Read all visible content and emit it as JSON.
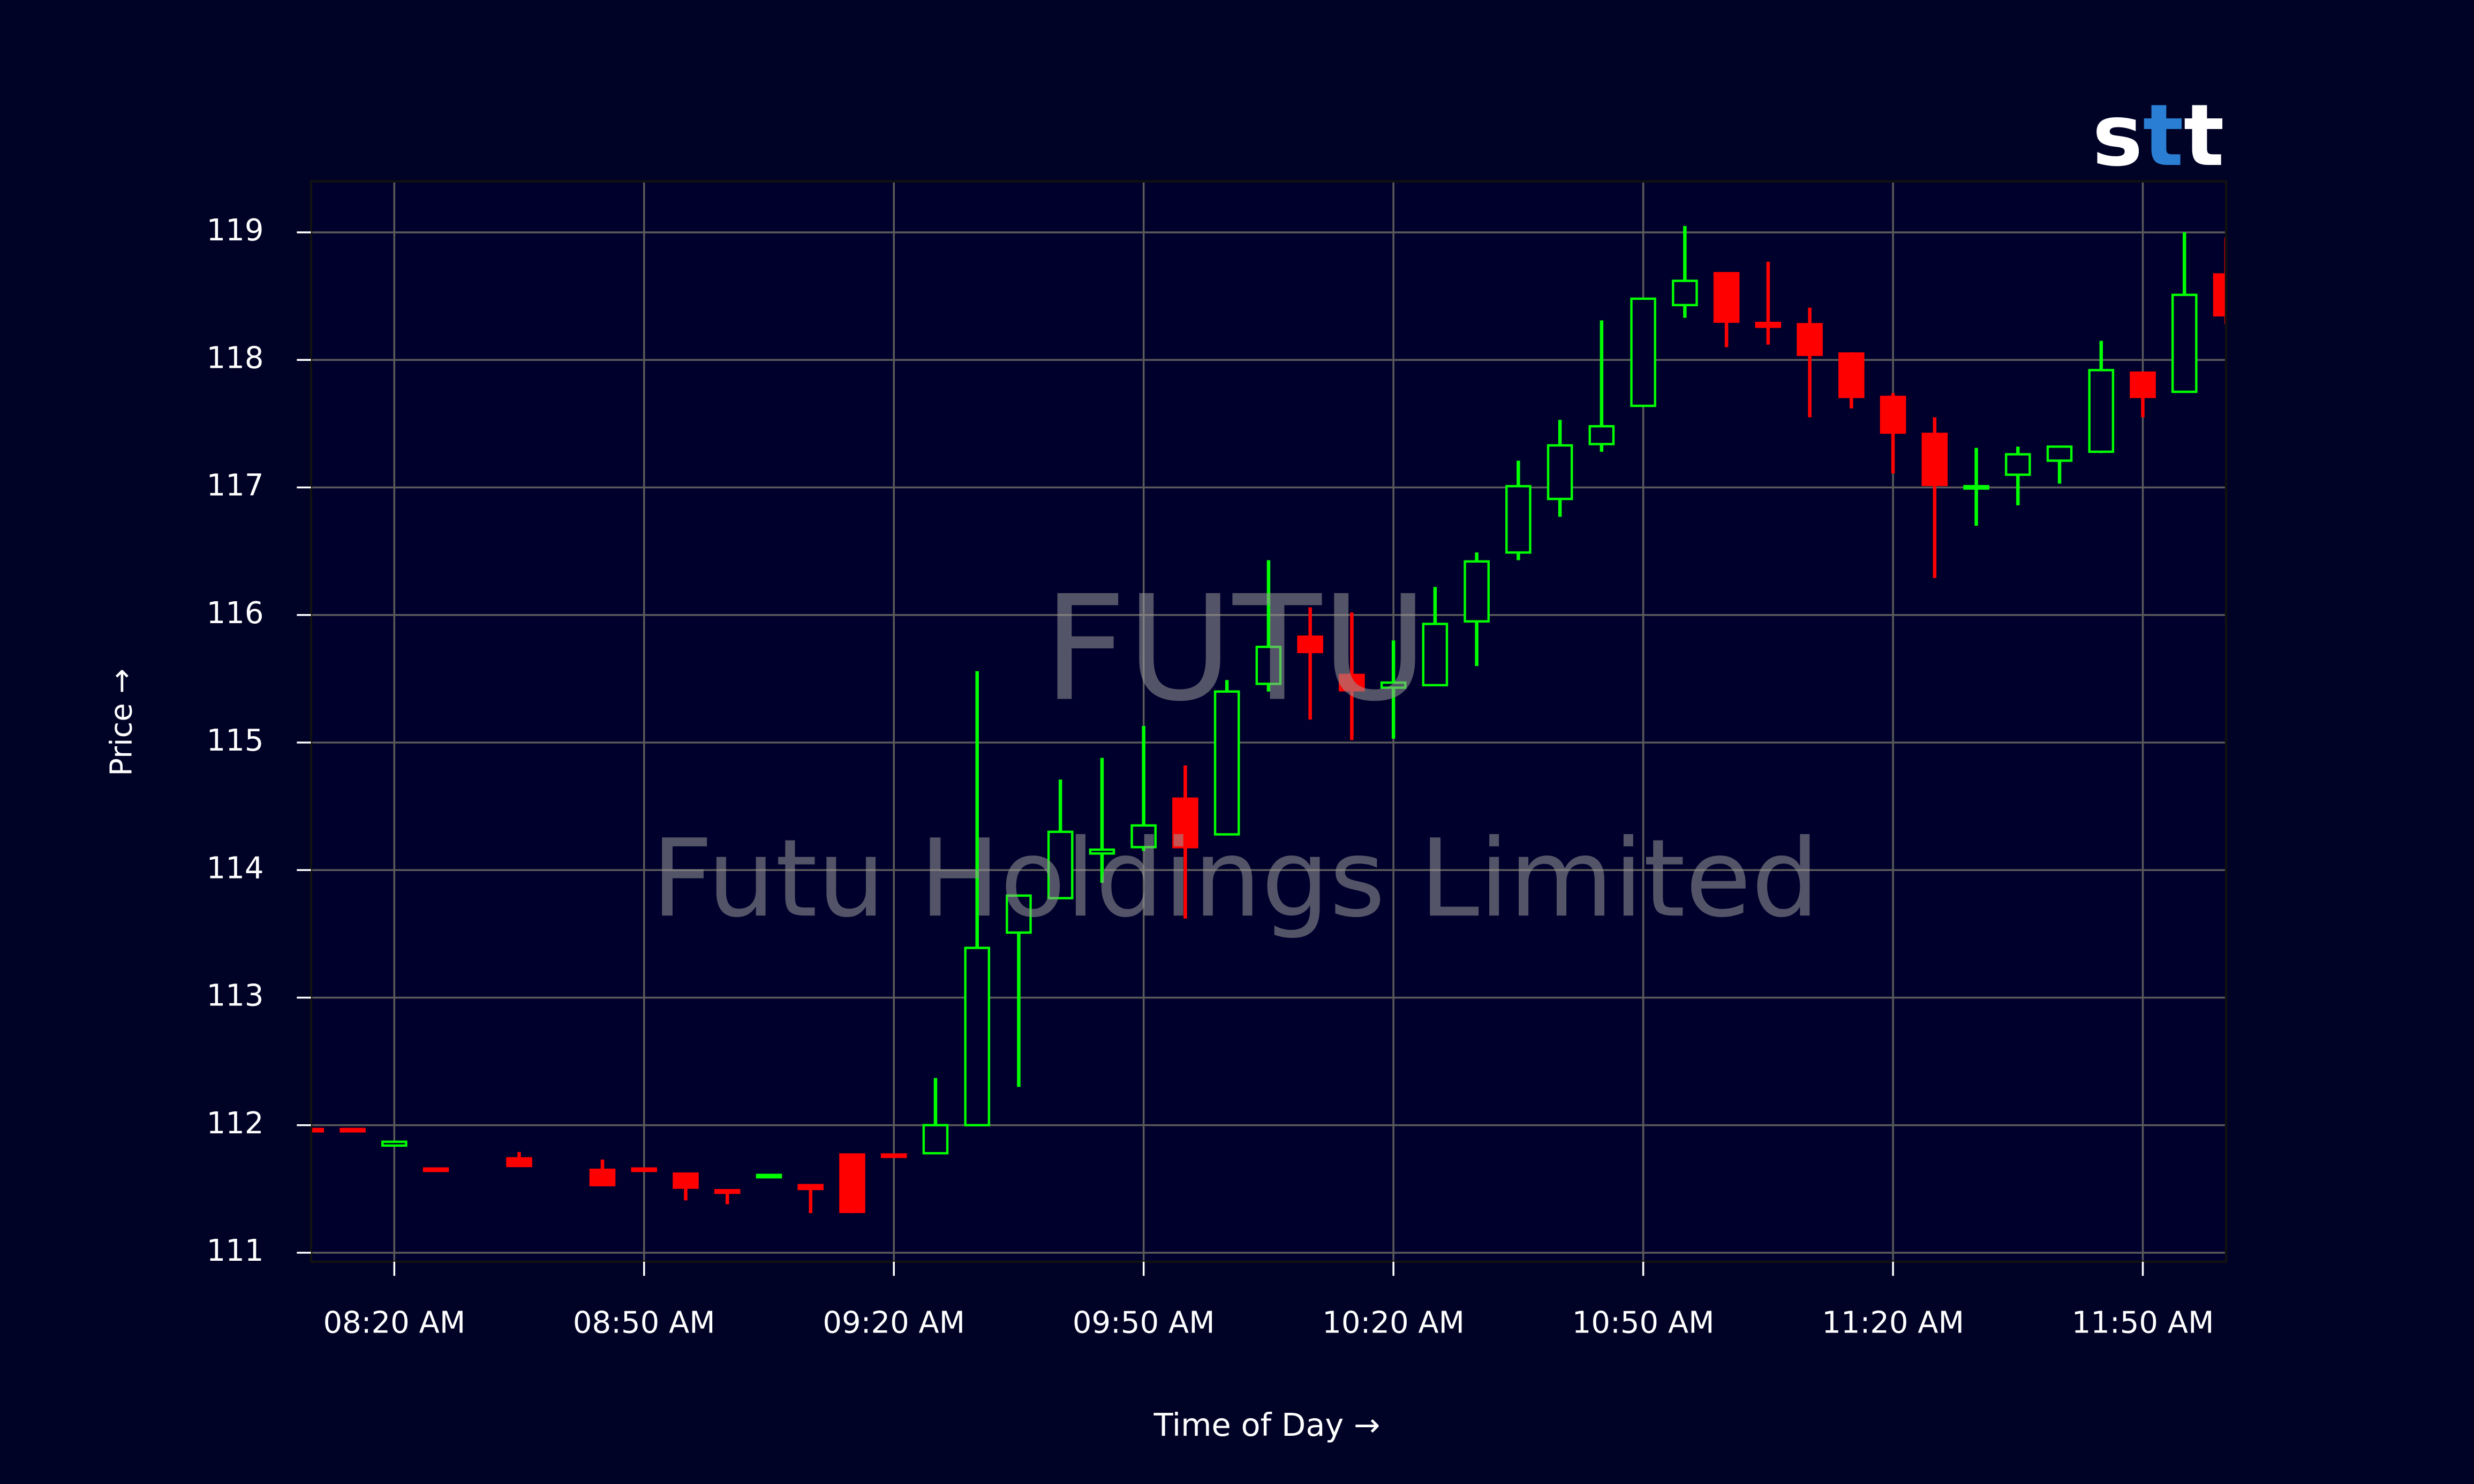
{
  "chart_data": {
    "type": "candlestick",
    "logo": [
      "s",
      "t",
      "t"
    ],
    "watermark": "FUTU",
    "watermark_subtitle": "Futu Holdings Limited",
    "x_label": "Time of Day →",
    "y_label": "Price →",
    "up_color": "#00ff00",
    "down_color": "#ff0000",
    "grid": true,
    "x": [
      "08:10 AM",
      "08:15 AM",
      "08:20 AM",
      "08:25 AM",
      "08:35 AM",
      "08:45 AM",
      "08:50 AM",
      "08:55 AM",
      "09:00 AM",
      "09:05 AM",
      "09:10 AM",
      "09:15 AM",
      "09:20 AM",
      "09:25 AM",
      "09:30 AM",
      "09:35 AM",
      "09:40 AM",
      "09:45 AM",
      "09:50 AM",
      "09:55 AM",
      "10:00 AM",
      "10:05 AM",
      "10:10 AM",
      "10:15 AM",
      "10:20 AM",
      "10:25 AM",
      "10:30 AM",
      "10:35 AM",
      "10:40 AM",
      "10:45 AM",
      "10:50 AM",
      "10:55 AM",
      "11:00 AM",
      "11:05 AM",
      "11:10 AM",
      "11:15 AM",
      "11:20 AM",
      "11:25 AM",
      "11:30 AM",
      "11:35 AM",
      "11:40 AM",
      "11:45 AM",
      "11:50 AM",
      "11:55 AM",
      "12:00 PM"
    ],
    "open": [
      111.97,
      111.97,
      111.84,
      111.66,
      111.74,
      111.65,
      111.66,
      111.62,
      111.49,
      111.6,
      111.53,
      111.77,
      111.77,
      111.78,
      112.0,
      113.51,
      113.78,
      114.13,
      114.18,
      114.56,
      114.28,
      115.46,
      115.83,
      115.53,
      115.43,
      115.45,
      115.95,
      116.49,
      116.91,
      117.34,
      117.64,
      118.43,
      118.68,
      118.29,
      118.28,
      118.05,
      117.71,
      117.42,
      117.0,
      117.1,
      117.21,
      117.28,
      117.9,
      117.75,
      118.67
    ],
    "high": [
      111.97,
      111.97,
      111.87,
      111.66,
      111.79,
      111.73,
      111.66,
      111.62,
      111.49,
      111.61,
      111.53,
      111.77,
      111.77,
      112.37,
      115.56,
      113.8,
      114.71,
      114.88,
      115.13,
      114.82,
      115.49,
      116.43,
      116.06,
      116.02,
      115.8,
      116.22,
      116.49,
      117.21,
      117.53,
      118.31,
      118.48,
      119.05,
      118.68,
      118.77,
      118.41,
      118.06,
      117.74,
      117.55,
      117.31,
      117.32,
      117.32,
      118.15,
      117.9,
      119.0,
      118.96
    ],
    "low": [
      111.96,
      111.96,
      111.84,
      111.65,
      111.68,
      111.53,
      111.65,
      111.41,
      111.38,
      111.6,
      111.31,
      111.31,
      111.76,
      111.78,
      112.0,
      112.3,
      113.78,
      113.9,
      114.15,
      113.62,
      114.28,
      115.4,
      115.18,
      115.02,
      115.03,
      115.45,
      115.6,
      116.43,
      116.77,
      117.28,
      117.64,
      118.33,
      118.1,
      118.12,
      117.55,
      117.62,
      117.11,
      116.29,
      116.7,
      116.86,
      117.03,
      117.27,
      117.55,
      117.75,
      118.28
    ],
    "close": [
      111.96,
      111.96,
      111.87,
      111.65,
      111.68,
      111.53,
      111.65,
      111.51,
      111.47,
      111.61,
      111.5,
      111.32,
      111.76,
      112.0,
      113.39,
      113.8,
      114.3,
      114.16,
      114.35,
      114.18,
      115.4,
      115.75,
      115.71,
      115.41,
      115.47,
      115.93,
      116.42,
      117.01,
      117.33,
      117.48,
      118.48,
      118.62,
      118.3,
      118.26,
      118.04,
      117.71,
      117.43,
      117.02,
      117.01,
      117.26,
      117.32,
      117.92,
      117.71,
      118.51,
      118.35
    ],
    "xlim": [
      "08:10 AM",
      "12:00 PM"
    ],
    "xticks": [
      "08:20 AM",
      "08:50 AM",
      "09:20 AM",
      "09:50 AM",
      "10:20 AM",
      "10:50 AM",
      "11:20 AM",
      "11:50 AM"
    ],
    "ylim": [
      110.93,
      119.4
    ],
    "yticks": [
      111,
      112,
      113,
      114,
      115,
      116,
      117,
      118,
      119
    ]
  }
}
